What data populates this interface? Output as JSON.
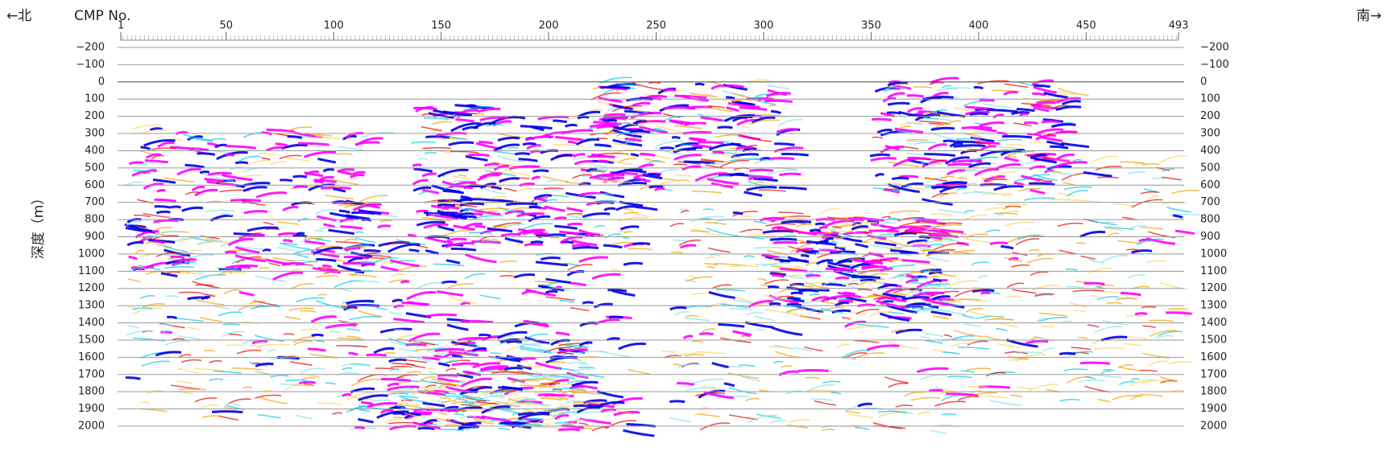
{
  "header": {
    "left_direction": "←北",
    "right_direction": "南→"
  },
  "chart_data": {
    "type": "seismic-section",
    "x_label": "CMP No.",
    "y_label": "深度（m）",
    "xlim": [
      1,
      493
    ],
    "xticks": [
      1,
      50,
      100,
      150,
      200,
      250,
      300,
      350,
      400,
      450,
      493
    ],
    "ylim": [
      -200,
      2000
    ],
    "yticks": [
      {
        "value": -200,
        "label": "−200"
      },
      {
        "value": -100,
        "label": "−100"
      },
      0,
      100,
      200,
      300,
      400,
      500,
      600,
      700,
      800,
      900,
      1000,
      1100,
      1200,
      1300,
      1400,
      1500,
      1600,
      1700,
      1800,
      1900,
      2000
    ],
    "grid": true
  }
}
